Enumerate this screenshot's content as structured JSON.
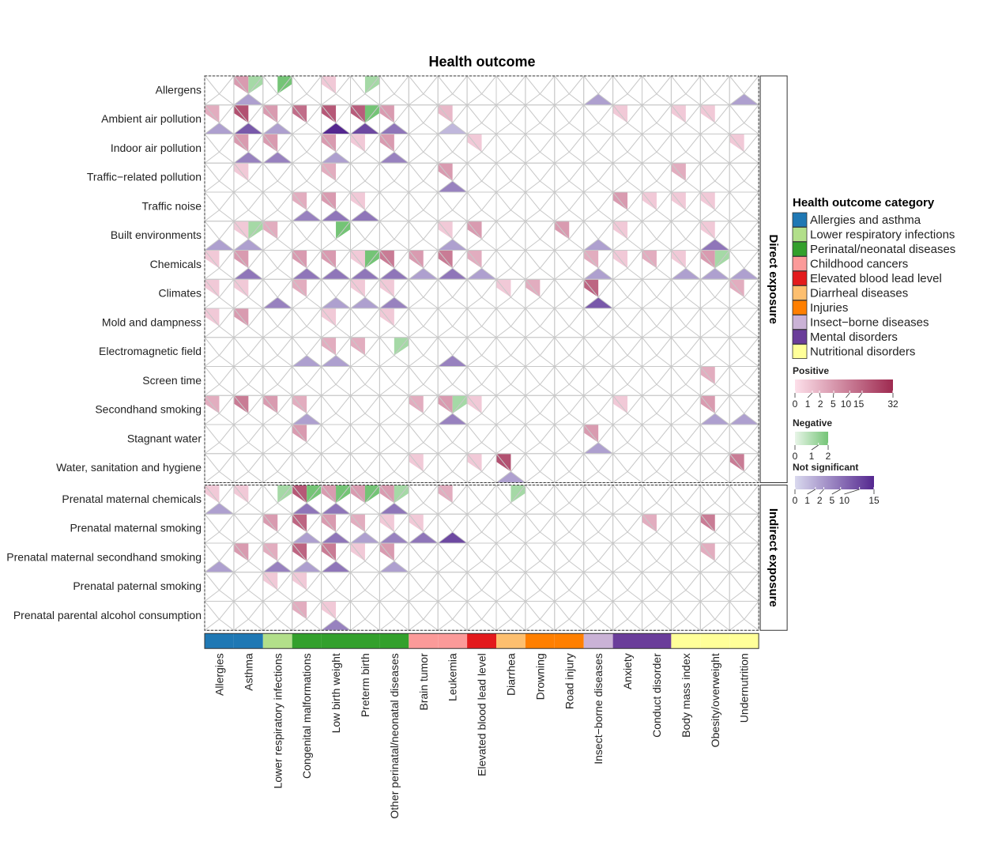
{
  "chart_data": {
    "type": "heatmap",
    "title": "Health outcome",
    "rows": [
      "Allergens",
      "Ambient air pollution",
      "Indoor air pollution",
      "Traffic−related pollution",
      "Traffic noise",
      "Built environments",
      "Chemicals",
      "Climates",
      "Mold and dampness",
      "Electromagnetic field",
      "Screen time",
      "Secondhand smoking",
      "Stagnant water",
      "Water, sanitation and hygiene",
      "Prenatal maternal chemicals",
      "Prenatal maternal smoking",
      "Prenatal maternal secondhand smoking",
      "Prenatal paternal smoking",
      "Prenatal parental alcohol consumption"
    ],
    "columns": [
      "Allergies",
      "Asthma",
      "Lower respiratory infections",
      "Congenital malformations",
      "Low birth weight",
      "Preterm birth",
      "Other perinatal/neonatal diseases",
      "Brain tumor",
      "Leukemia",
      "Elevated blood lead level",
      "Diarrhea",
      "Drowning",
      "Road injury",
      "Insect−borne diseases",
      "Anxiety",
      "Conduct disorder",
      "Body mass index",
      "Obesity/overweight",
      "Undernutrition"
    ],
    "column_categories": [
      0,
      0,
      1,
      2,
      2,
      2,
      2,
      3,
      3,
      4,
      5,
      6,
      6,
      7,
      8,
      8,
      9,
      9,
      9
    ],
    "row_groups": [
      {
        "label": "Direct exposure",
        "count": 14
      },
      {
        "label": "Indirect exposure",
        "count": 5
      }
    ],
    "legend": {
      "title": "Health outcome category",
      "items": [
        {
          "label": "Allergies and asthma",
          "color": "#1f78b4"
        },
        {
          "label": "Lower respiratory infections",
          "color": "#b2df8a"
        },
        {
          "label": "Perinatal/neonatal diseases",
          "color": "#33a02c"
        },
        {
          "label": "Childhood cancers",
          "color": "#fb9a99"
        },
        {
          "label": "Elevated blood lead level",
          "color": "#e31a1c"
        },
        {
          "label": "Diarrheal diseases",
          "color": "#fdbf6f"
        },
        {
          "label": "Injuries",
          "color": "#ff7f00"
        },
        {
          "label": "Insect−borne diseases",
          "color": "#cab2d6"
        },
        {
          "label": "Mental disorders",
          "color": "#6a3d9a"
        },
        {
          "label": "Nutritional disorders",
          "color": "#ffff99"
        }
      ]
    },
    "scales": {
      "positive": {
        "title": "Positive",
        "max": 32,
        "ticks": [
          0,
          1,
          2,
          5,
          10,
          15,
          32
        ],
        "low_color": "#fde0ea",
        "high_color": "#9e2a50"
      },
      "negative": {
        "title": "Negative",
        "max": 2,
        "ticks": [
          0,
          1,
          2
        ],
        "low_color": "#e8f5e8",
        "high_color": "#74c476"
      },
      "not_significant": {
        "title": "Not significant",
        "max": 15,
        "ticks": [
          0,
          1,
          2,
          5,
          10,
          15
        ],
        "low_color": "#d9d9ee",
        "high_color": "#54278f"
      }
    },
    "cells": [
      [
        "",
        "p:5 n:1 s:2",
        "n:2",
        "",
        "p:1",
        "n:1",
        "",
        "",
        "",
        "",
        "",
        "",
        "",
        "s:2",
        "",
        "",
        "",
        "",
        "s:2"
      ],
      [
        "p:3 s:2",
        "p:20 s:8",
        "p:5 s:2",
        "p:13",
        "p:18 s:15",
        "p:17 n:2 s:10",
        "p:5 s:5",
        "",
        "p:2 s:1",
        "",
        "",
        "",
        "",
        "",
        "p:1",
        "",
        "p:1",
        "p:1",
        ""
      ],
      [
        "",
        "p:5 s:4",
        "p:5 s:4",
        "",
        "p:5 s:2",
        "p:1",
        "p:5 s:4",
        "",
        "",
        "p:1",
        "",
        "",
        "",
        "",
        "",
        "",
        "",
        "",
        "p:1"
      ],
      [
        "",
        "p:1",
        "",
        "",
        "p:3",
        "",
        "",
        "",
        "p:5 s:4",
        "",
        "",
        "",
        "",
        "",
        "",
        "",
        "p:3",
        "",
        ""
      ],
      [
        "",
        "",
        "",
        "p:3 s:4",
        "p:5 s:5",
        "p:1 s:5",
        "",
        "",
        "",
        "",
        "",
        "",
        "",
        "",
        "p:5",
        "p:1",
        "p:1",
        "p:1",
        ""
      ],
      [
        "s:2",
        "n:1 p:1 s:2",
        "p:3",
        "",
        "n:2",
        "",
        "",
        "",
        "p:1 s:2",
        "p:5",
        "",
        "",
        "p:5",
        "s:2",
        "p:1",
        "",
        "",
        "p:1 s:5",
        ""
      ],
      [
        "p:1",
        "p:5 s:5",
        "",
        "p:5 s:5",
        "p:5 s:5",
        "p:1 n:2 s:5",
        "p:10 s:5",
        "p:5 s:2",
        "p:10 s:5",
        "p:3 s:2",
        "",
        "",
        "",
        "p:3 s:2",
        "p:1",
        "p:3",
        "p:1 s:2",
        "p:5 n:1 s:2",
        "s:2"
      ],
      [
        "p:1",
        "p:1",
        "s:4",
        "p:3",
        "s:2",
        "p:1 s:2",
        "p:1 s:4",
        "",
        "",
        "",
        "p:1",
        "p:3",
        "",
        "p:15 s:8",
        "",
        "",
        "",
        "",
        "p:3"
      ],
      [
        "p:1",
        "p:5",
        "",
        "",
        "p:1",
        "",
        "p:1",
        "",
        "",
        "",
        "",
        "",
        "",
        "",
        "",
        "",
        "",
        "",
        ""
      ],
      [
        "",
        "",
        "",
        "s:2",
        "p:3 s:2",
        "p:3",
        "n:1",
        "",
        "s:4",
        "",
        "",
        "",
        "",
        "",
        "",
        "",
        "",
        "",
        ""
      ],
      [
        "",
        "",
        "",
        "",
        "",
        "",
        "",
        "",
        "",
        "",
        "",
        "",
        "",
        "",
        "",
        "",
        "",
        "p:3",
        ""
      ],
      [
        "p:3",
        "p:10",
        "p:5",
        "p:3 s:2",
        "",
        "",
        "",
        "p:3",
        "n:1 p:5 s:4",
        "p:1",
        "",
        "",
        "",
        "",
        "p:1",
        "",
        "",
        "p:5 s:2",
        "s:2"
      ],
      [
        "",
        "",
        "",
        "p:5",
        "",
        "",
        "",
        "",
        "",
        "",
        "",
        "",
        "",
        "p:5 s:2",
        "",
        "",
        "",
        "",
        ""
      ],
      [
        "",
        "",
        "",
        "",
        "",
        "",
        "",
        "p:1",
        "",
        "p:1",
        "p:20 s:2",
        "",
        "",
        "",
        "",
        "",
        "",
        "",
        "p:10"
      ],
      [
        "p:1 s:2",
        "p:1",
        "n:1",
        "p:18 n:2 s:5",
        "p:5 n:2 s:5",
        "p:5 n:2",
        "p:5 n:1 s:5",
        "",
        "p:3",
        "",
        "n:1",
        "",
        "",
        "",
        "",
        "",
        "",
        "",
        ""
      ],
      [
        "",
        "",
        "p:5",
        "p:15 s:2",
        "p:5 s:5",
        "p:3 s:2",
        "p:1 s:4",
        "p:1 s:5",
        "s:10",
        "",
        "",
        "",
        "",
        "",
        "",
        "p:3",
        "",
        "p:10",
        ""
      ],
      [
        "s:2",
        "p:5",
        "p:3 s:4",
        "p:15 s:2",
        "p:10 s:5",
        "p:1",
        "p:5 s:2",
        "",
        "",
        "",
        "",
        "",
        "",
        "",
        "",
        "",
        "",
        "p:3",
        ""
      ],
      [
        "",
        "",
        "p:1",
        "p:1",
        "",
        "",
        "",
        "",
        "",
        "",
        "",
        "",
        "",
        "",
        "",
        "",
        "",
        "",
        ""
      ],
      [
        "",
        "",
        "",
        "p:3",
        "p:1 s:4",
        "",
        "",
        "",
        "",
        "",
        "",
        "",
        "",
        "",
        "",
        "",
        "",
        "",
        ""
      ]
    ]
  }
}
